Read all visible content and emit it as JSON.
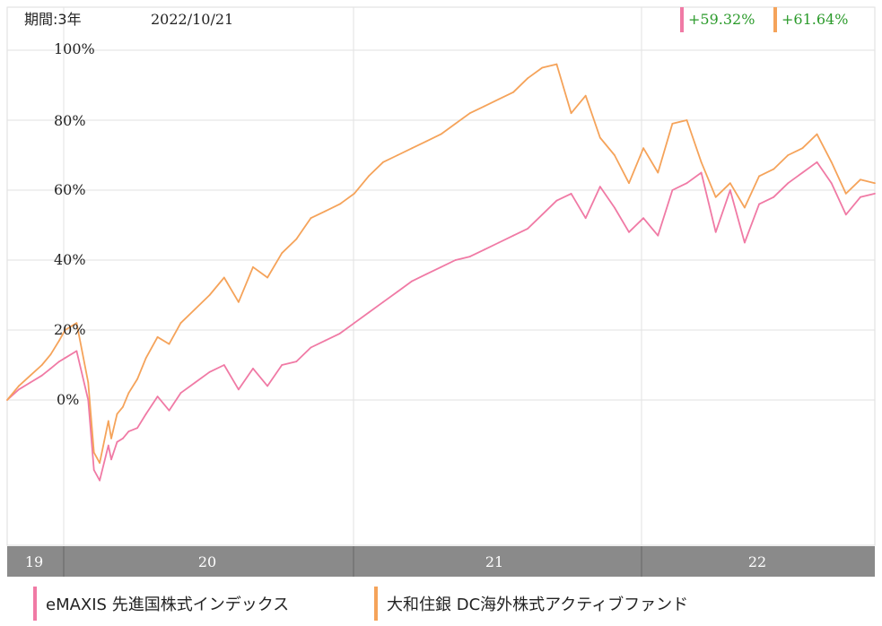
{
  "header": {
    "period_label": "期間:3年",
    "date": "2022/10/21"
  },
  "returns": [
    {
      "text": "+59.32%",
      "color": "#f07aa5"
    },
    {
      "text": "+61.64%",
      "color": "#f5a35a"
    }
  ],
  "legend": [
    {
      "label": "eMAXIS 先進国株式インデックス",
      "color": "#f07aa5"
    },
    {
      "label": "大和住銀 DC海外株式アクティブファンド",
      "color": "#f5a35a"
    }
  ],
  "chart_data": {
    "type": "line",
    "y_tick_labels": [
      "100%",
      "80%",
      "60%",
      "40%",
      "20%",
      "0%"
    ],
    "y_ticks": [
      100,
      80,
      60,
      40,
      20,
      0
    ],
    "ylim": [
      -43,
      103
    ],
    "x_tick_labels": [
      "19",
      "20",
      "21",
      "22"
    ],
    "x_tick_positions": [
      2019.8,
      2020.4,
      2021.4,
      2022.4
    ],
    "x_boundaries": [
      2019.0,
      2020.0,
      2021.0,
      2022.0
    ],
    "xlim": [
      2019.8,
      2022.8
    ],
    "grid": true,
    "series": [
      {
        "name": "eMAXIS 先進国株式インデックス",
        "color": "#f07aa5",
        "x": [
          2019.8,
          2019.84,
          2019.88,
          2019.92,
          2019.95,
          2019.98,
          2020.0,
          2020.04,
          2020.08,
          2020.1,
          2020.12,
          2020.15,
          2020.16,
          2020.18,
          2020.2,
          2020.22,
          2020.25,
          2020.28,
          2020.32,
          2020.36,
          2020.4,
          2020.45,
          2020.5,
          2020.55,
          2020.6,
          2020.65,
          2020.7,
          2020.75,
          2020.8,
          2020.85,
          2020.9,
          2020.95,
          2021.0,
          2021.05,
          2021.1,
          2021.15,
          2021.2,
          2021.25,
          2021.3,
          2021.35,
          2021.4,
          2021.45,
          2021.5,
          2021.55,
          2021.6,
          2021.65,
          2021.7,
          2021.75,
          2021.8,
          2021.85,
          2021.9,
          2021.95,
          2022.0,
          2022.05,
          2022.1,
          2022.15,
          2022.2,
          2022.25,
          2022.3,
          2022.35,
          2022.4,
          2022.45,
          2022.5,
          2022.55,
          2022.6,
          2022.65,
          2022.7,
          2022.75,
          2022.8
        ],
        "y": [
          0,
          3,
          5,
          7,
          9,
          11,
          12,
          14,
          0,
          -20,
          -23,
          -13,
          -17,
          -12,
          -11,
          -9,
          -8,
          -4,
          1,
          -3,
          2,
          5,
          8,
          10,
          3,
          9,
          4,
          10,
          11,
          15,
          17,
          19,
          22,
          25,
          28,
          31,
          34,
          36,
          38,
          40,
          41,
          43,
          45,
          47,
          49,
          53,
          57,
          59,
          52,
          61,
          55,
          48,
          52,
          47,
          60,
          62,
          65,
          48,
          60,
          45,
          56,
          58,
          62,
          65,
          68,
          62,
          53,
          58,
          59
        ]
      },
      {
        "name": "大和住銀 DC海外株式アクティブファンド",
        "color": "#f5a35a",
        "x": [
          2019.8,
          2019.84,
          2019.88,
          2019.92,
          2019.95,
          2019.98,
          2020.0,
          2020.04,
          2020.08,
          2020.1,
          2020.12,
          2020.15,
          2020.16,
          2020.18,
          2020.2,
          2020.22,
          2020.25,
          2020.28,
          2020.32,
          2020.36,
          2020.4,
          2020.45,
          2020.5,
          2020.55,
          2020.6,
          2020.65,
          2020.7,
          2020.75,
          2020.8,
          2020.85,
          2020.9,
          2020.95,
          2021.0,
          2021.05,
          2021.1,
          2021.15,
          2021.2,
          2021.25,
          2021.3,
          2021.35,
          2021.4,
          2021.45,
          2021.5,
          2021.55,
          2021.6,
          2021.65,
          2021.7,
          2021.75,
          2021.8,
          2021.85,
          2021.9,
          2021.95,
          2022.0,
          2022.05,
          2022.1,
          2022.15,
          2022.2,
          2022.25,
          2022.3,
          2022.35,
          2022.4,
          2022.45,
          2022.5,
          2022.55,
          2022.6,
          2022.65,
          2022.7,
          2022.75,
          2022.8
        ],
        "y": [
          0,
          4,
          7,
          10,
          13,
          17,
          20,
          22,
          5,
          -15,
          -18,
          -6,
          -11,
          -4,
          -2,
          2,
          6,
          12,
          18,
          16,
          22,
          26,
          30,
          35,
          28,
          38,
          35,
          42,
          46,
          52,
          54,
          56,
          59,
          64,
          68,
          70,
          72,
          74,
          76,
          79,
          82,
          84,
          86,
          88,
          92,
          95,
          96,
          82,
          87,
          75,
          70,
          62,
          72,
          65,
          79,
          80,
          68,
          58,
          62,
          55,
          64,
          66,
          70,
          72,
          76,
          68,
          59,
          63,
          62
        ]
      }
    ]
  }
}
